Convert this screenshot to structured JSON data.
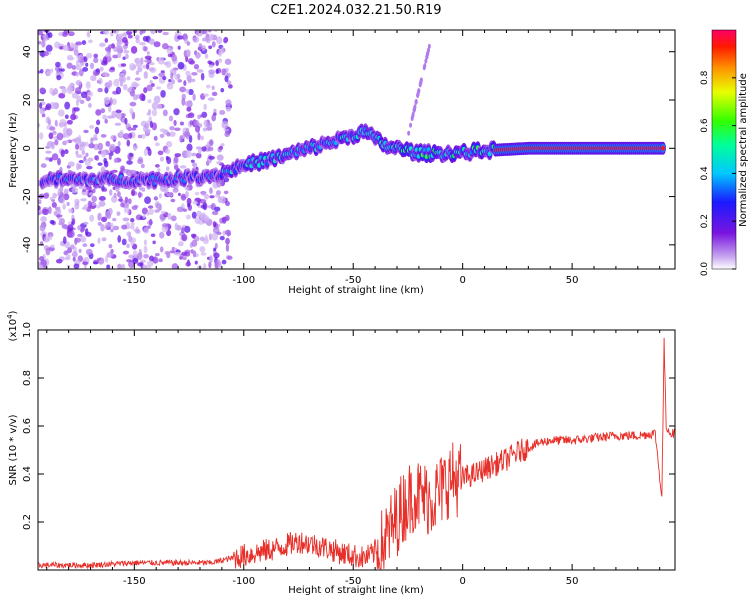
{
  "title": "C2E1.2024.032.21.50.R19",
  "chart_data": [
    {
      "type": "heatmap",
      "xlabel": "Height of straight line (km)",
      "ylabel": "Frequency (Hz)",
      "xlim": [
        -194,
        97
      ],
      "ylim": [
        -50,
        49
      ],
      "xticks": [
        -150,
        -100,
        -50,
        0,
        50
      ],
      "yticks": [
        -40,
        -20,
        0,
        20,
        40
      ],
      "colorbar": {
        "label": "Normalized spectral amplitude",
        "range": [
          0,
          1
        ],
        "ticks": [
          "0.0",
          "0.2",
          "0.4",
          "0.6",
          "0.8"
        ],
        "colormap": "rainbow"
      },
      "ridge": [
        {
          "x": -192,
          "y": -13
        },
        {
          "x": -180,
          "y": -13
        },
        {
          "x": -160,
          "y": -13
        },
        {
          "x": -140,
          "y": -13
        },
        {
          "x": -125,
          "y": -12
        },
        {
          "x": -112,
          "y": -11
        },
        {
          "x": -100,
          "y": -7
        },
        {
          "x": -85,
          "y": -4
        },
        {
          "x": -70,
          "y": 0
        },
        {
          "x": -55,
          "y": 4
        },
        {
          "x": -45,
          "y": 7
        },
        {
          "x": -35,
          "y": 1
        },
        {
          "x": -20,
          "y": -2
        },
        {
          "x": -5,
          "y": -2
        },
        {
          "x": 10,
          "y": -1
        },
        {
          "x": 30,
          "y": 0
        },
        {
          "x": 60,
          "y": 0
        },
        {
          "x": 92,
          "y": 0
        }
      ]
    },
    {
      "type": "line",
      "xlabel": "Height of straight line (km)",
      "ylabel": "SNR (10 * v/v)",
      "yunit": "(x10",
      "yunit_exp": "4",
      "yunit_close": ")",
      "xlim": [
        -194,
        97
      ],
      "ylim": [
        0,
        1.0
      ],
      "xticks": [
        -150,
        -100,
        -50,
        0,
        50
      ],
      "yticks": [
        0.2,
        0.4,
        0.6,
        0.8,
        1.0
      ],
      "series": [
        {
          "color": "#e8302a",
          "x": [
            -194,
            -170,
            -150,
            -130,
            -115,
            -105,
            -95,
            -85,
            -75,
            -65,
            -55,
            -45,
            -38,
            -32,
            -26,
            -22,
            -18,
            -14,
            -10,
            -6,
            -2,
            2,
            6,
            10,
            15,
            20,
            25,
            30,
            35,
            40,
            50,
            60,
            70,
            80,
            88,
            91,
            92,
            93,
            95,
            97
          ],
          "y": [
            0.02,
            0.02,
            0.03,
            0.03,
            0.03,
            0.05,
            0.07,
            0.09,
            0.12,
            0.1,
            0.07,
            0.05,
            0.08,
            0.18,
            0.28,
            0.32,
            0.3,
            0.3,
            0.33,
            0.38,
            0.38,
            0.39,
            0.4,
            0.42,
            0.44,
            0.46,
            0.49,
            0.51,
            0.53,
            0.54,
            0.54,
            0.55,
            0.56,
            0.56,
            0.57,
            0.3,
            0.95,
            0.6,
            0.57,
            0.57
          ]
        }
      ]
    }
  ]
}
